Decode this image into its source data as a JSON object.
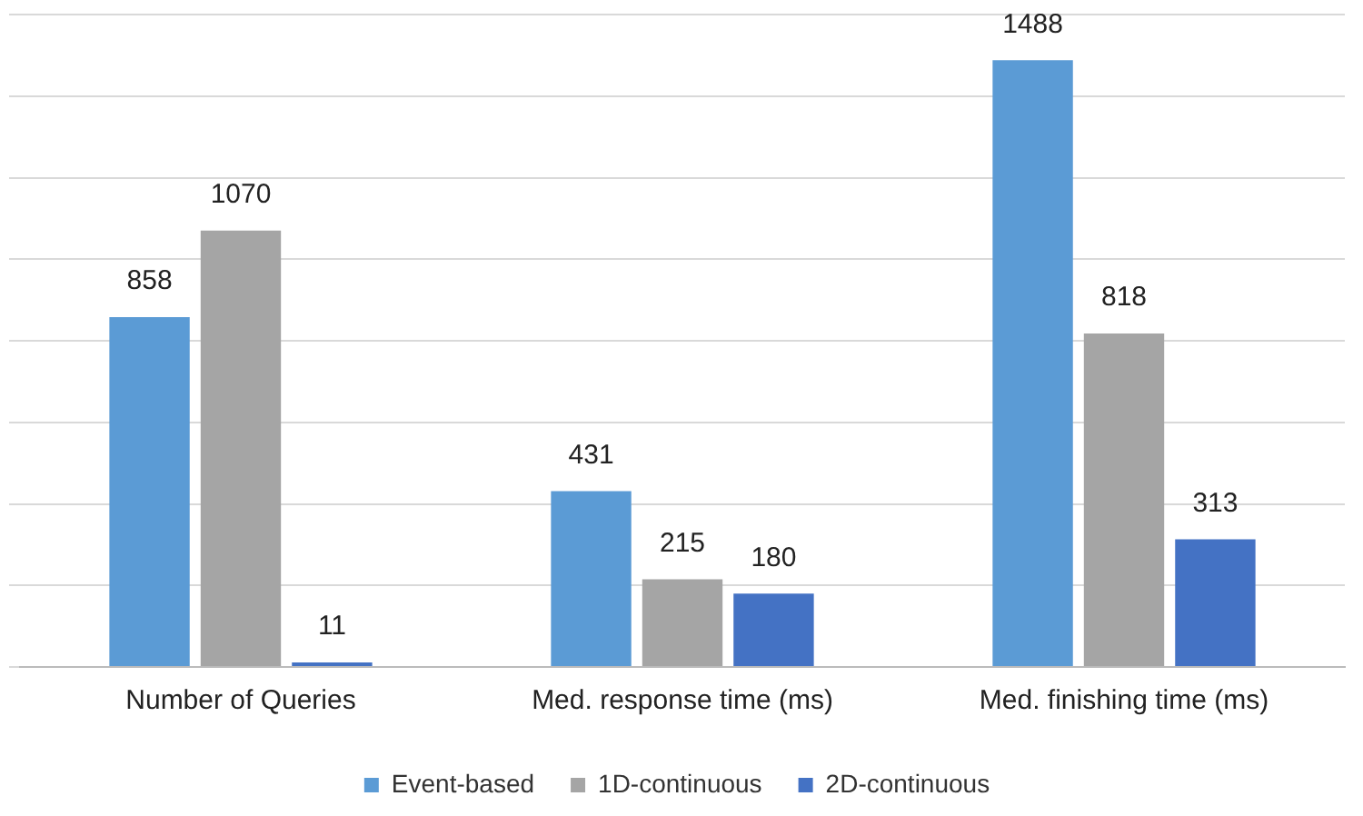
{
  "chart_data": {
    "type": "bar",
    "categories": [
      "Number of Queries",
      "Med. response time (ms)",
      "Med. finishing time (ms)"
    ],
    "series": [
      {
        "name": "Event-based",
        "color": "#5b9bd5",
        "values": [
          858,
          431,
          1488
        ]
      },
      {
        "name": "1D-continuous",
        "color": "#a5a5a5",
        "values": [
          1070,
          215,
          818
        ]
      },
      {
        "name": "2D-continuous",
        "color": "#4472c4",
        "values": [
          11,
          180,
          313
        ]
      }
    ],
    "ylim": [
      0,
      1600
    ],
    "yticks": [
      {
        "value": 0,
        "label": null
      },
      {
        "value": 200,
        "label": null
      },
      {
        "value": 400,
        "label": null
      },
      {
        "value": 600,
        "label": null
      },
      {
        "value": 800,
        "label": null
      },
      {
        "value": 1000,
        "label": null
      },
      {
        "value": 1200,
        "label": null
      },
      {
        "value": 1400,
        "label": null
      },
      {
        "value": 1600,
        "label": null
      }
    ],
    "tick_labels": "x",
    "grid": "y",
    "legend": "bottom",
    "data_labels": true
  }
}
